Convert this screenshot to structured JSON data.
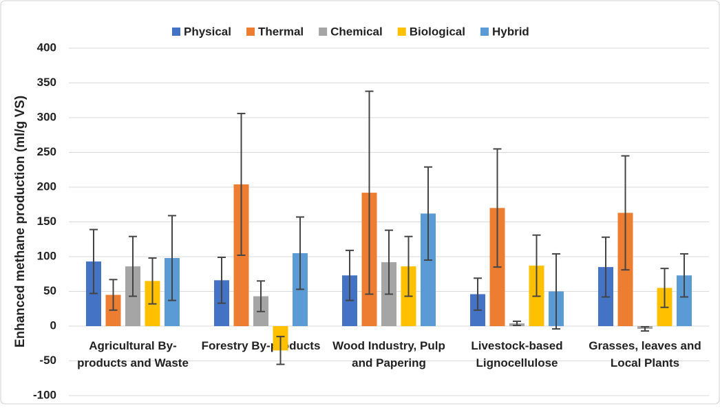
{
  "chart_data": {
    "type": "bar",
    "y_label": "Enhanced methane production (ml/g VS)",
    "categories": [
      "Agricultural By-products and Waste",
      "Forestry By-products",
      "Wood Industry, Pulp and Papering",
      "Livestock-based Lignocellulose",
      "Grasses, leaves and Local Plants"
    ],
    "series": [
      {
        "name": "Physical",
        "color": "#4472c4",
        "values": [
          93,
          66,
          73,
          46,
          85
        ],
        "errors": [
          46,
          33,
          36,
          23,
          43
        ]
      },
      {
        "name": "Thermal",
        "color": "#ed7d31",
        "values": [
          45,
          204,
          192,
          170,
          163
        ],
        "errors": [
          22,
          102,
          146,
          85,
          82
        ]
      },
      {
        "name": "Chemical",
        "color": "#a5a5a5",
        "values": [
          86,
          43,
          92,
          4,
          -4
        ],
        "errors": [
          43,
          22,
          46,
          3,
          3
        ]
      },
      {
        "name": "Biological",
        "color": "#ffc000",
        "values": [
          65,
          -35,
          86,
          87,
          55
        ],
        "errors": [
          33,
          20,
          43,
          44,
          28
        ]
      },
      {
        "name": "Hybrid",
        "color": "#5b9bd5",
        "values": [
          98,
          105,
          162,
          50,
          73
        ],
        "errors": [
          61,
          52,
          67,
          54,
          31
        ]
      }
    ],
    "ylim": [
      -100,
      400
    ],
    "yticks": [
      -100,
      -50,
      0,
      50,
      100,
      150,
      200,
      250,
      300,
      350,
      400
    ],
    "grid": true,
    "legend": "top"
  }
}
